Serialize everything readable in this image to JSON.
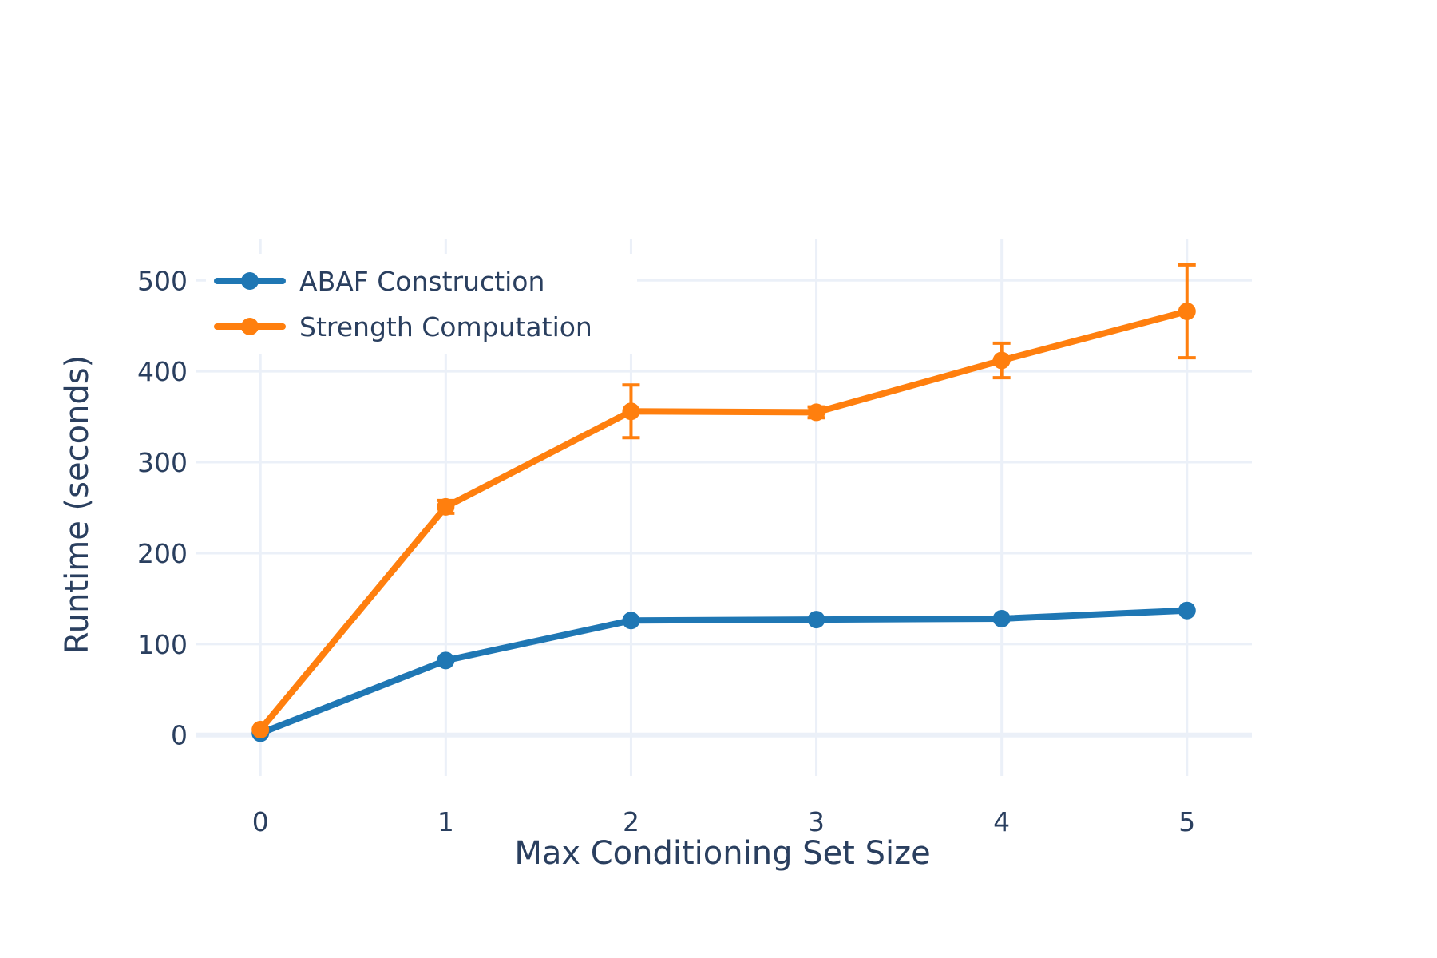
{
  "chart_data": {
    "type": "line",
    "title": "",
    "xlabel": "Max Conditioning Set Size",
    "ylabel": "Runtime (seconds)",
    "x": [
      0,
      1,
      2,
      3,
      4,
      5
    ],
    "xlim": [
      -0.35,
      5.35
    ],
    "ylim": [
      -45,
      545
    ],
    "xticks": [
      0,
      1,
      2,
      3,
      4,
      5
    ],
    "yticks": [
      0,
      100,
      200,
      300,
      400,
      500
    ],
    "grid": true,
    "legend_position": "top-left",
    "series": [
      {
        "name": "ABAF Construction",
        "color": "#1f77b4",
        "values": [
          2,
          82,
          126,
          127,
          128,
          137
        ],
        "error": [
          0,
          0,
          0,
          0,
          0,
          0
        ]
      },
      {
        "name": "Strength Computation",
        "color": "#ff7f0e",
        "values": [
          6,
          251,
          356,
          355,
          412,
          466
        ],
        "error": [
          0,
          7,
          29,
          6,
          19,
          51
        ]
      }
    ]
  }
}
